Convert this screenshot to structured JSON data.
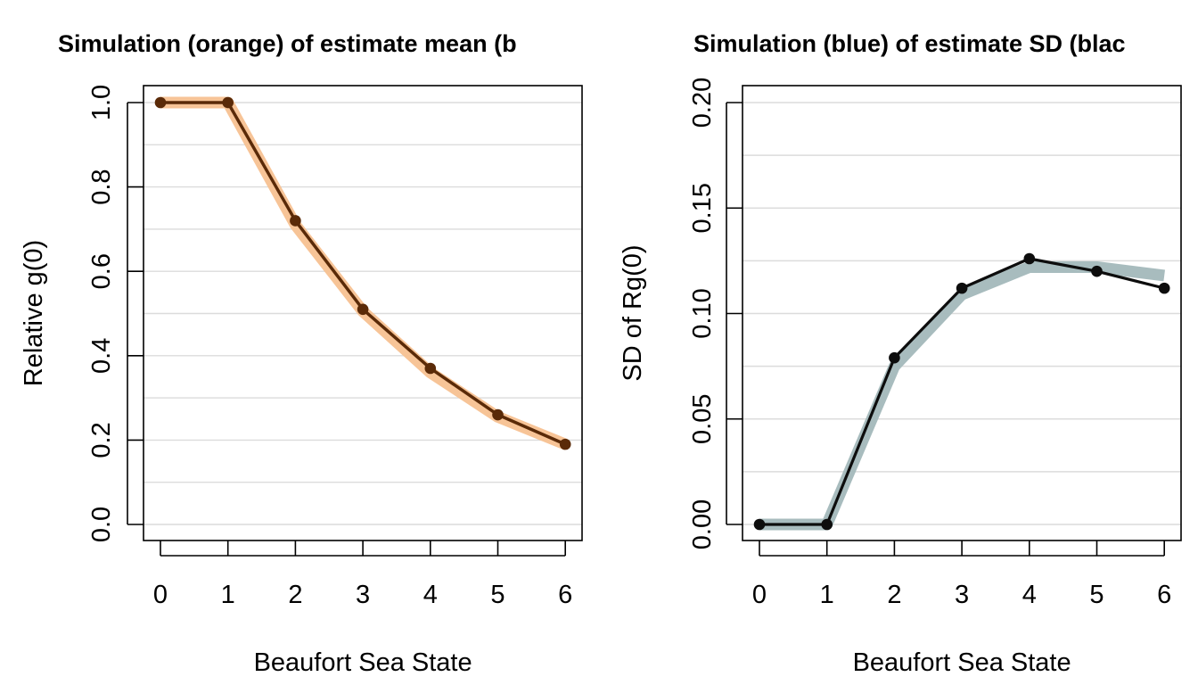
{
  "chart_data": [
    {
      "type": "line",
      "title": "Simulation (orange) of estimate mean (b",
      "xlabel": "Beaufort Sea State",
      "ylabel": "Relative g(0)",
      "x": [
        0,
        1,
        2,
        3,
        4,
        5,
        6
      ],
      "xticks": [
        "0",
        "1",
        "2",
        "3",
        "4",
        "5",
        "6"
      ],
      "yticks": [
        "0.0",
        "0.2",
        "0.4",
        "0.6",
        "0.8",
        "1.0"
      ],
      "ylim": [
        0,
        1
      ],
      "grid": true,
      "series": [
        {
          "role": "simulation",
          "values": [
            1.0,
            1.0,
            0.71,
            0.505,
            0.36,
            0.255,
            0.19
          ],
          "color": "#f7c191"
        },
        {
          "role": "estimate",
          "values": [
            1.0,
            1.0,
            0.72,
            0.51,
            0.37,
            0.26,
            0.19
          ],
          "color": "#5a2a08"
        }
      ]
    },
    {
      "type": "line",
      "title": "Simulation (blue) of estimate SD (blac",
      "xlabel": "Beaufort Sea State",
      "ylabel": "SD of Rg(0)",
      "x": [
        0,
        1,
        2,
        3,
        4,
        5,
        6
      ],
      "xticks": [
        "0",
        "1",
        "2",
        "3",
        "4",
        "5",
        "6"
      ],
      "yticks": [
        "0.00",
        "0.05",
        "0.10",
        "0.15",
        "0.20"
      ],
      "ylim": [
        0,
        0.2
      ],
      "grid": true,
      "series": [
        {
          "role": "simulation",
          "values": [
            0.0,
            0.0,
            0.075,
            0.109,
            0.122,
            0.122,
            0.118
          ],
          "color": "#a3b8ba"
        },
        {
          "role": "estimate",
          "values": [
            0.0,
            0.0,
            0.079,
            0.112,
            0.126,
            0.12,
            0.112
          ],
          "color": "#0d0d0d"
        }
      ]
    }
  ]
}
